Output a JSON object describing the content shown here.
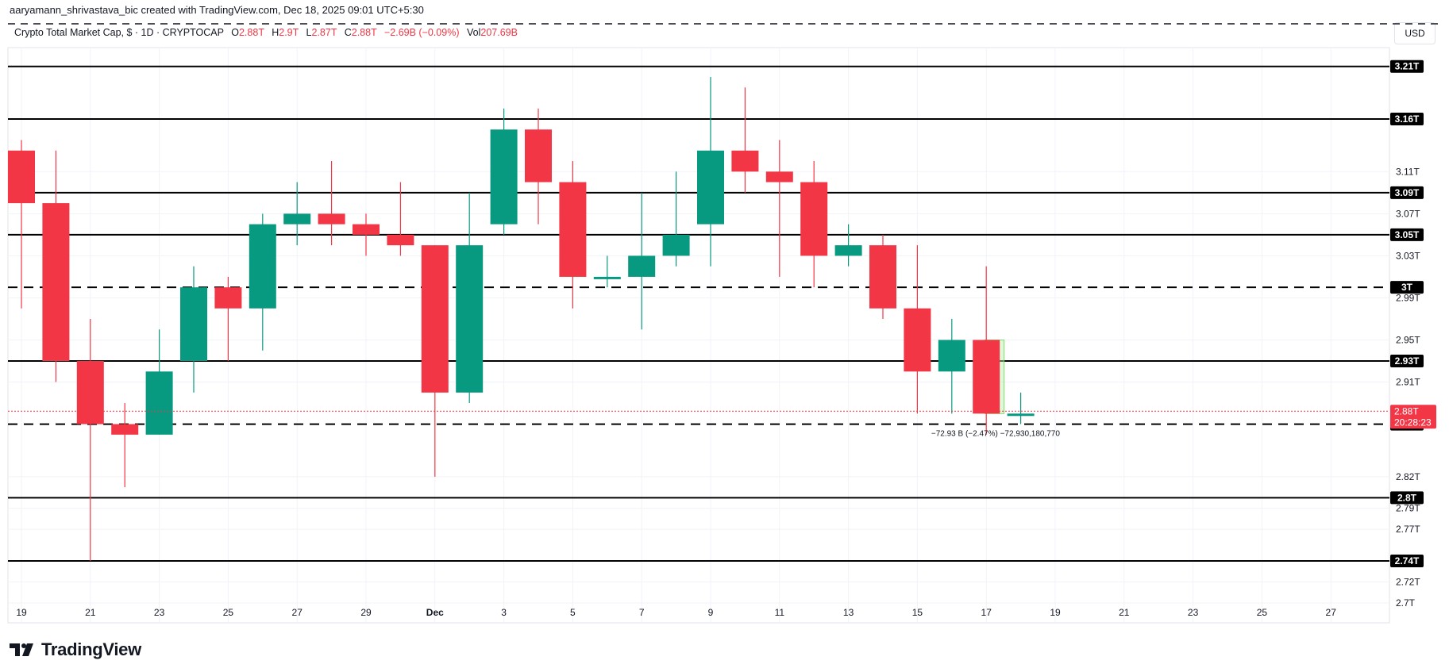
{
  "header": {
    "credit": "aaryamann_shrivastava_bic created with TradingView.com, Dec 18, 2025 09:01 UTC+5:30",
    "symbol": "Crypto Total Market Cap, $ · 1D · CRYPTOCAP",
    "o_label": "O",
    "o_value": "2.88T",
    "h_label": "H",
    "h_value": "2.9T",
    "l_label": "L",
    "l_value": "2.87T",
    "c_label": "C",
    "c_value": "2.88T",
    "change": "−2.69B (−0.09%)",
    "vol_label": "Vol",
    "vol_value": "207.69B"
  },
  "currency_button": "USD",
  "brand": {
    "name": "TradingView"
  },
  "colors": {
    "up": "#089981",
    "down": "#f23645",
    "text": "#131722",
    "grid": "#f0f3fa"
  },
  "chart_data": {
    "type": "candlestick",
    "x_ticks": [
      "19",
      "21",
      "23",
      "25",
      "27",
      "29",
      "Dec",
      "3",
      "5",
      "7",
      "9",
      "11",
      "13",
      "15",
      "17",
      "19",
      "21",
      "23",
      "25",
      "27"
    ],
    "y_ticks": [
      "3.21T",
      "3.16T",
      "3.11T",
      "3.07T",
      "3.03T",
      "2.99T",
      "2.95T",
      "2.91T",
      "2.82T",
      "2.79T",
      "2.77T",
      "2.72T",
      "2.7T"
    ],
    "ylim": [
      2.69,
      3.23
    ],
    "candles": [
      {
        "date": "Nov 19",
        "open": 3.13,
        "high": 3.14,
        "low": 2.98,
        "close": 3.08
      },
      {
        "date": "Nov 20",
        "open": 3.08,
        "high": 3.13,
        "low": 2.91,
        "close": 2.93
      },
      {
        "date": "Nov 21",
        "open": 2.93,
        "high": 2.97,
        "low": 2.74,
        "close": 2.87
      },
      {
        "date": "Nov 22",
        "open": 2.87,
        "high": 2.89,
        "low": 2.81,
        "close": 2.86
      },
      {
        "date": "Nov 23",
        "open": 2.86,
        "high": 2.96,
        "low": 2.86,
        "close": 2.92
      },
      {
        "date": "Nov 24",
        "open": 2.93,
        "high": 3.02,
        "low": 2.9,
        "close": 3.0
      },
      {
        "date": "Nov 25",
        "open": 3.0,
        "high": 3.01,
        "low": 2.93,
        "close": 2.98
      },
      {
        "date": "Nov 26",
        "open": 2.98,
        "high": 3.07,
        "low": 2.94,
        "close": 3.06
      },
      {
        "date": "Nov 27",
        "open": 3.06,
        "high": 3.1,
        "low": 3.04,
        "close": 3.07
      },
      {
        "date": "Nov 28",
        "open": 3.07,
        "high": 3.12,
        "low": 3.04,
        "close": 3.06
      },
      {
        "date": "Nov 29",
        "open": 3.06,
        "high": 3.07,
        "low": 3.03,
        "close": 3.05
      },
      {
        "date": "Nov 30",
        "open": 3.05,
        "high": 3.1,
        "low": 3.03,
        "close": 3.04
      },
      {
        "date": "Dec 1",
        "open": 3.04,
        "high": 3.04,
        "low": 2.82,
        "close": 2.9
      },
      {
        "date": "Dec 2",
        "open": 2.9,
        "high": 3.09,
        "low": 2.89,
        "close": 3.04
      },
      {
        "date": "Dec 3",
        "open": 3.06,
        "high": 3.17,
        "low": 3.05,
        "close": 3.15
      },
      {
        "date": "Dec 4",
        "open": 3.15,
        "high": 3.17,
        "low": 3.06,
        "close": 3.1
      },
      {
        "date": "Dec 5",
        "open": 3.1,
        "high": 3.12,
        "low": 2.98,
        "close": 3.01
      },
      {
        "date": "Dec 6",
        "open": 3.01,
        "high": 3.03,
        "low": 3.0,
        "close": 3.01
      },
      {
        "date": "Dec 7",
        "open": 3.01,
        "high": 3.09,
        "low": 2.96,
        "close": 3.03
      },
      {
        "date": "Dec 8",
        "open": 3.03,
        "high": 3.11,
        "low": 3.02,
        "close": 3.05
      },
      {
        "date": "Dec 9",
        "open": 3.06,
        "high": 3.2,
        "low": 3.02,
        "close": 3.13
      },
      {
        "date": "Dec 10",
        "open": 3.13,
        "high": 3.19,
        "low": 3.09,
        "close": 3.11
      },
      {
        "date": "Dec 11",
        "open": 3.11,
        "high": 3.14,
        "low": 3.01,
        "close": 3.1
      },
      {
        "date": "Dec 12",
        "open": 3.1,
        "high": 3.12,
        "low": 3.0,
        "close": 3.03
      },
      {
        "date": "Dec 13",
        "open": 3.03,
        "high": 3.06,
        "low": 3.02,
        "close": 3.04
      },
      {
        "date": "Dec 14",
        "open": 3.04,
        "high": 3.05,
        "low": 2.97,
        "close": 2.98
      },
      {
        "date": "Dec 15",
        "open": 2.98,
        "high": 3.04,
        "low": 2.88,
        "close": 2.92
      },
      {
        "date": "Dec 16",
        "open": 2.92,
        "high": 2.97,
        "low": 2.88,
        "close": 2.95
      },
      {
        "date": "Dec 17",
        "open": 2.95,
        "high": 3.02,
        "low": 2.86,
        "close": 2.88
      },
      {
        "date": "Dec 18",
        "open": 2.88,
        "high": 2.9,
        "low": 2.87,
        "close": 2.88
      }
    ],
    "levels": [
      {
        "value": 3.21,
        "label": "3.21T",
        "style": "solid"
      },
      {
        "value": 3.16,
        "label": "3.16T",
        "style": "solid"
      },
      {
        "value": 3.09,
        "label": "3.09T",
        "style": "solid"
      },
      {
        "value": 3.05,
        "label": "3.05T",
        "style": "solid"
      },
      {
        "value": 3.0,
        "label": "3T",
        "style": "dashed"
      },
      {
        "value": 2.93,
        "label": "2.93T",
        "style": "solid"
      },
      {
        "value": 2.87,
        "label": "2.87T",
        "style": "dashed"
      },
      {
        "value": 2.8,
        "label": "2.8T",
        "style": "solid"
      },
      {
        "value": 2.74,
        "label": "2.74T",
        "style": "solid"
      }
    ],
    "top_dashed_level": 3.25,
    "current_price": {
      "value": 2.88,
      "label": "2.88T",
      "countdown": "20:28:23"
    },
    "measure": {
      "start_date": "Dec 17",
      "end_date": "Dec 18",
      "from": 2.95,
      "to": 2.88,
      "label": "−72.93 B (−2.47%) −72,930,180,770"
    }
  }
}
